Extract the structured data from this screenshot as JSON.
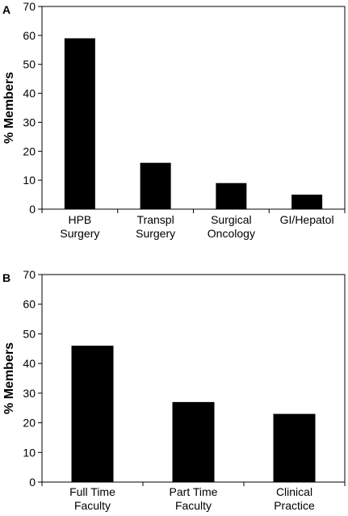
{
  "chart_data": [
    {
      "type": "bar",
      "panel": "A",
      "ylabel": "% Members",
      "ylim": [
        0,
        70
      ],
      "yticks": [
        0,
        10,
        20,
        30,
        40,
        50,
        60,
        70
      ],
      "categories": [
        [
          "HPB",
          "Surgery"
        ],
        [
          "Transpl",
          "Surgery"
        ],
        [
          "Surgical",
          "Oncology"
        ],
        [
          "GI/Hepatol"
        ]
      ],
      "values": [
        59,
        16,
        9,
        5
      ],
      "bar_color": "#000000",
      "grid": false
    },
    {
      "type": "bar",
      "panel": "B",
      "ylabel": "% Members",
      "ylim": [
        0,
        70
      ],
      "yticks": [
        0,
        10,
        20,
        30,
        40,
        50,
        60,
        70
      ],
      "categories": [
        [
          "Full Time",
          "Faculty"
        ],
        [
          "Part Time",
          "Faculty"
        ],
        [
          "Clinical",
          "Practice"
        ]
      ],
      "values": [
        46,
        27,
        23
      ],
      "bar_color": "#000000",
      "grid": false
    }
  ]
}
